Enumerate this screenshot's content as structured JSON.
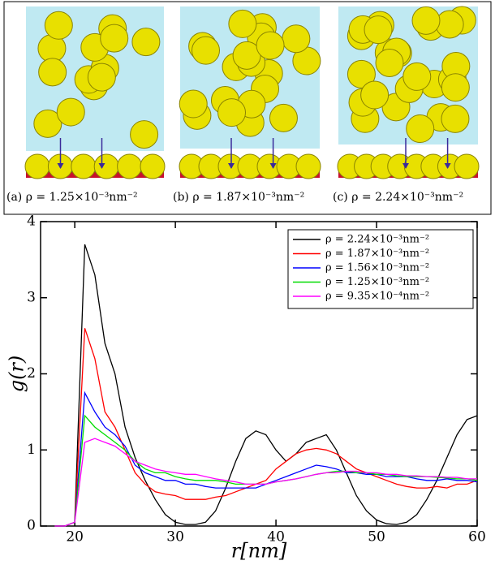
{
  "panels": [
    {
      "caption": "(a) ρ = 1.25×10⁻³nm⁻²"
    },
    {
      "caption": "(b) ρ = 1.87×10⁻³nm⁻²"
    },
    {
      "caption": "(c) ρ = 2.24×10⁻³nm⁻²"
    }
  ],
  "chart_data": {
    "type": "line",
    "xlabel": "r[nm]",
    "ylabel": "g(r)",
    "x": [
      18,
      19,
      20,
      21,
      22,
      23,
      24,
      25,
      26,
      27,
      28,
      29,
      30,
      31,
      32,
      33,
      34,
      35,
      36,
      37,
      38,
      39,
      40,
      41,
      42,
      43,
      44,
      45,
      46,
      47,
      48,
      49,
      50,
      51,
      52,
      53,
      54,
      55,
      56,
      57,
      58,
      59,
      60
    ],
    "series": [
      {
        "name": "ρ = 2.24×10⁻³nm⁻²",
        "color": "#000000",
        "values": [
          0,
          0,
          0.05,
          3.7,
          3.3,
          2.4,
          2.0,
          1.3,
          0.9,
          0.6,
          0.35,
          0.15,
          0.05,
          0.02,
          0.02,
          0.05,
          0.2,
          0.5,
          0.85,
          1.15,
          1.25,
          1.2,
          1.0,
          0.85,
          0.95,
          1.1,
          1.15,
          1.2,
          1.0,
          0.7,
          0.4,
          0.2,
          0.08,
          0.03,
          0.02,
          0.05,
          0.15,
          0.35,
          0.6,
          0.9,
          1.2,
          1.4,
          1.45
        ]
      },
      {
        "name": "ρ = 1.87×10⁻³nm⁻²",
        "color": "#ff0000",
        "values": [
          0,
          0,
          0.05,
          2.6,
          2.2,
          1.5,
          1.3,
          1.0,
          0.7,
          0.55,
          0.45,
          0.42,
          0.4,
          0.35,
          0.35,
          0.35,
          0.38,
          0.4,
          0.45,
          0.5,
          0.55,
          0.6,
          0.75,
          0.85,
          0.95,
          1.0,
          1.02,
          1.0,
          0.95,
          0.85,
          0.75,
          0.7,
          0.65,
          0.6,
          0.55,
          0.52,
          0.5,
          0.5,
          0.52,
          0.5,
          0.55,
          0.55,
          0.6
        ]
      },
      {
        "name": "ρ = 1.56×10⁻³nm⁻²",
        "color": "#0000ff",
        "values": [
          0,
          0,
          0.05,
          1.75,
          1.5,
          1.3,
          1.2,
          1.05,
          0.8,
          0.7,
          0.65,
          0.6,
          0.6,
          0.55,
          0.55,
          0.52,
          0.5,
          0.5,
          0.5,
          0.5,
          0.5,
          0.55,
          0.6,
          0.65,
          0.7,
          0.75,
          0.8,
          0.78,
          0.75,
          0.7,
          0.7,
          0.68,
          0.68,
          0.65,
          0.65,
          0.65,
          0.62,
          0.6,
          0.6,
          0.62,
          0.6,
          0.6,
          0.58
        ]
      },
      {
        "name": "ρ = 1.25×10⁻³nm⁻²",
        "color": "#00dd00",
        "values": [
          0,
          0,
          0.05,
          1.45,
          1.3,
          1.2,
          1.1,
          1.0,
          0.85,
          0.75,
          0.7,
          0.7,
          0.65,
          0.62,
          0.6,
          0.6,
          0.6,
          0.58,
          0.55,
          0.55,
          0.55,
          0.55,
          0.58,
          0.6,
          0.62,
          0.65,
          0.68,
          0.7,
          0.72,
          0.72,
          0.7,
          0.7,
          0.68,
          0.68,
          0.66,
          0.65,
          0.65,
          0.65,
          0.64,
          0.63,
          0.62,
          0.62,
          0.6
        ]
      },
      {
        "name": "ρ = 9.35×10⁻⁴nm⁻²",
        "color": "#ff00ff",
        "values": [
          0,
          0,
          0.05,
          1.1,
          1.15,
          1.1,
          1.05,
          0.95,
          0.85,
          0.8,
          0.75,
          0.72,
          0.7,
          0.68,
          0.68,
          0.65,
          0.62,
          0.6,
          0.58,
          0.55,
          0.55,
          0.55,
          0.58,
          0.6,
          0.62,
          0.65,
          0.68,
          0.7,
          0.7,
          0.72,
          0.72,
          0.7,
          0.7,
          0.68,
          0.68,
          0.66,
          0.66,
          0.65,
          0.65,
          0.64,
          0.64,
          0.62,
          0.62
        ]
      }
    ],
    "xlim": [
      16.6,
      60
    ],
    "ylim": [
      0,
      4
    ],
    "xticks": [
      20,
      30,
      40,
      50,
      60
    ],
    "yticks": [
      0,
      1,
      2,
      3,
      4
    ],
    "legend": "upper right"
  }
}
